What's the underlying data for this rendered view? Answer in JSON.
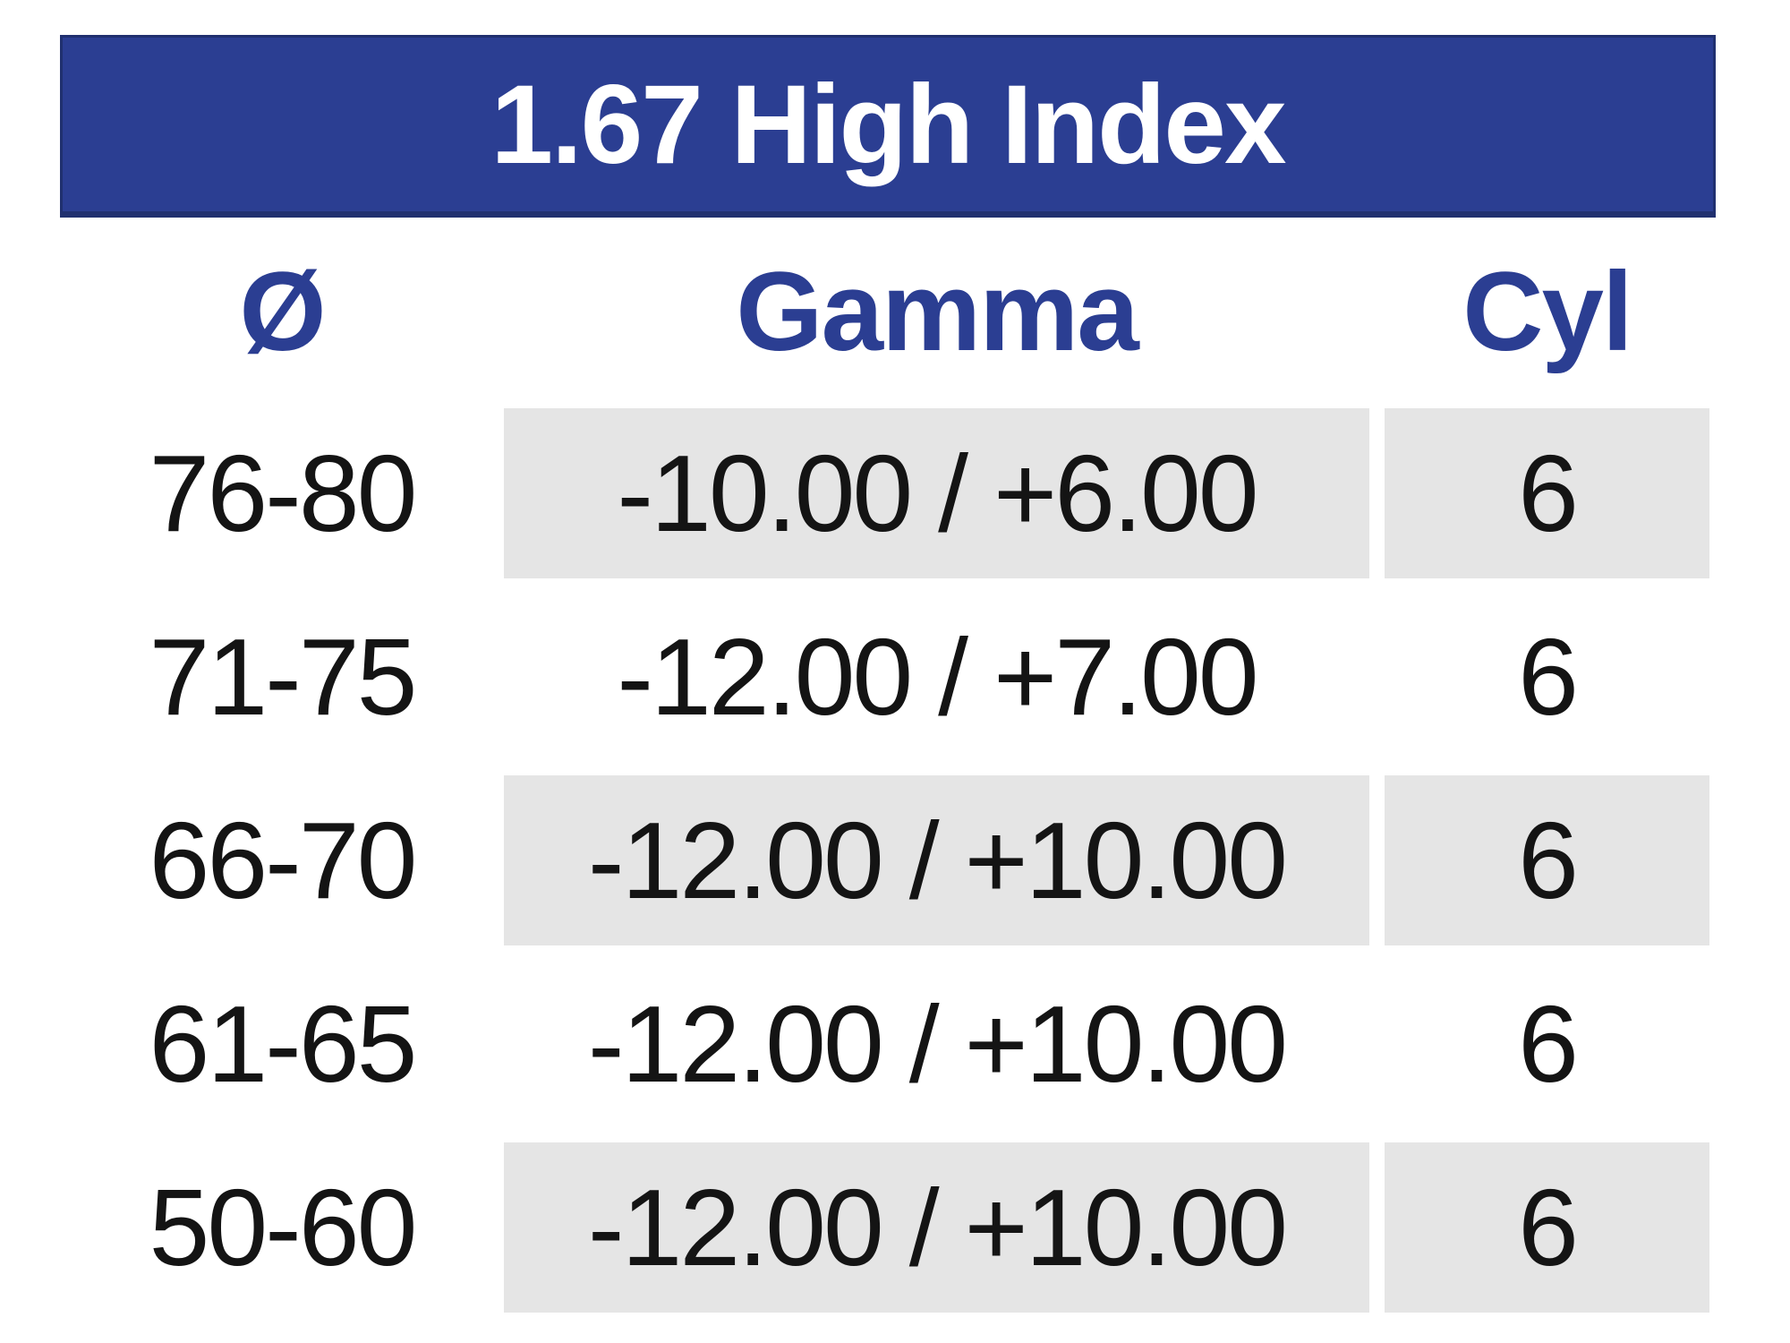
{
  "title": "1.67 High Index",
  "colors": {
    "accent_blue": "#2b3e92",
    "banner_border": "#20306f",
    "row_shade": "#e5e5e5",
    "text_dark": "#141414"
  },
  "table": {
    "columns": [
      {
        "key": "diameter",
        "label": "Ø"
      },
      {
        "key": "gamma",
        "label": "Gamma"
      },
      {
        "key": "cyl",
        "label": "Cyl"
      }
    ],
    "rows": [
      {
        "diameter": "76-80",
        "gamma": "-10.00 / +6.00",
        "cyl": "6",
        "shaded": true
      },
      {
        "diameter": "71-75",
        "gamma": "-12.00 / +7.00",
        "cyl": "6",
        "shaded": false
      },
      {
        "diameter": "66-70",
        "gamma": "-12.00 / +10.00",
        "cyl": "6",
        "shaded": true
      },
      {
        "diameter": "61-65",
        "gamma": "-12.00 / +10.00",
        "cyl": "6",
        "shaded": false
      },
      {
        "diameter": "50-60",
        "gamma": "-12.00 / +10.00",
        "cyl": "6",
        "shaded": true
      }
    ]
  }
}
